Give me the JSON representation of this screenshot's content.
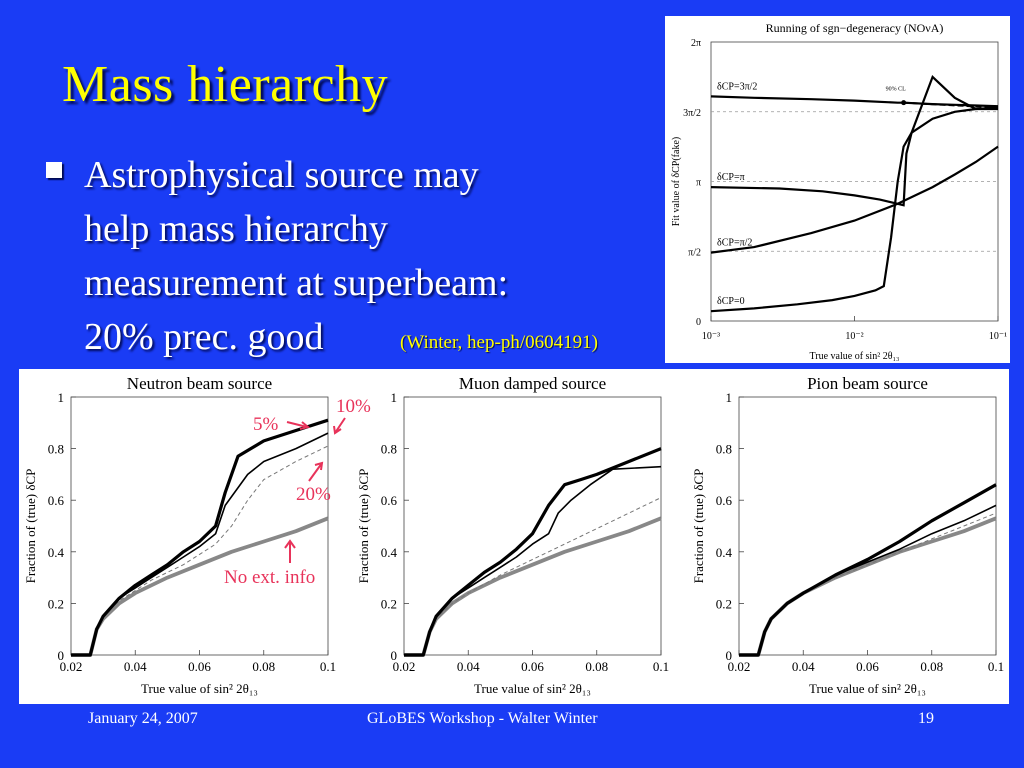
{
  "slide": {
    "title": "Mass hierarchy",
    "bullet_lines": [
      "Astrophysical source may",
      "help mass hierarchy",
      "measurement at superbeam:",
      "20% prec. good"
    ],
    "citation": "(Winter, hep-ph/0604191)",
    "footer_left": "January 24, 2007",
    "footer_center": "GLoBES Workshop - Walter Winter",
    "footer_right": "19",
    "background_color": "#1a3cf5",
    "title_color": "#ffff00",
    "annotation_color": "#e8335a"
  },
  "annotations": {
    "label_5": "5%",
    "label_10": "10%",
    "label_20": "20%",
    "label_noext": "No ext. info"
  },
  "chart_data": [
    {
      "type": "line",
      "title": "Running of sgn−degeneracy (NOνA)",
      "xlabel": "True value of sin² 2θ₁₃",
      "ylabel": "Fit value of δCP(fake)",
      "x_scale": "log",
      "xlim": [
        0.001,
        0.1
      ],
      "ylim": [
        0,
        2
      ],
      "y_unit": "π",
      "x_ticks": [
        {
          "v": 0.001,
          "l": "10⁻³"
        },
        {
          "v": 0.01,
          "l": "10⁻²"
        },
        {
          "v": 0.1,
          "l": "10⁻¹"
        }
      ],
      "y_ticks": [
        {
          "v": 0,
          "l": "0"
        },
        {
          "v": 0.5,
          "l": "π/2"
        },
        {
          "v": 1,
          "l": "π"
        },
        {
          "v": 1.5,
          "l": "3π/2"
        },
        {
          "v": 2,
          "l": "2π"
        }
      ],
      "cl_label": "90% CL",
      "series": [
        {
          "name": "δCP=3π/2",
          "x": [
            0.001,
            0.002,
            0.005,
            0.01,
            0.02,
            0.022,
            0.035,
            0.05,
            0.07,
            0.1
          ],
          "y": [
            1.61,
            1.6,
            1.59,
            1.58,
            1.565,
            1.565,
            1.555,
            1.55,
            1.545,
            1.54
          ]
        },
        {
          "name": "δCP=π",
          "x": [
            0.001,
            0.003,
            0.006,
            0.01,
            0.015,
            0.02,
            0.022,
            0.023,
            0.025,
            0.035,
            0.05,
            0.07,
            0.1
          ],
          "y": [
            0.96,
            0.95,
            0.93,
            0.9,
            0.87,
            0.84,
            0.83,
            1.2,
            1.35,
            1.75,
            1.6,
            1.52,
            1.52
          ]
        },
        {
          "name": "δCP=π/2",
          "x": [
            0.001,
            0.002,
            0.005,
            0.01,
            0.02,
            0.035,
            0.05,
            0.07,
            0.1
          ],
          "y": [
            0.49,
            0.53,
            0.63,
            0.72,
            0.84,
            0.96,
            1.05,
            1.14,
            1.25
          ]
        },
        {
          "name": "δCP=0",
          "x": [
            0.001,
            0.002,
            0.004,
            0.007,
            0.01,
            0.014,
            0.016,
            0.018,
            0.02,
            0.022,
            0.025,
            0.035,
            0.05,
            0.07,
            0.1
          ],
          "y": [
            0.07,
            0.09,
            0.12,
            0.15,
            0.18,
            0.22,
            0.25,
            0.6,
            1.0,
            1.25,
            1.35,
            1.45,
            1.5,
            1.52,
            1.53
          ]
        }
      ],
      "dashed_series": {
        "x": [
          0.022,
          0.1
        ],
        "y": [
          1.565,
          1.53
        ]
      }
    },
    {
      "type": "line",
      "title": "Neutron beam source",
      "xlabel": "True value of sin² 2θ₁₃",
      "ylabel": "Fraction of (true) δCP",
      "xlim": [
        0.02,
        0.1
      ],
      "ylim": [
        0,
        1
      ],
      "x_ticks": [
        0.02,
        0.04,
        0.06,
        0.08,
        0.1
      ],
      "y_ticks": [
        0,
        0.2,
        0.4,
        0.6,
        0.8,
        1
      ],
      "series": [
        {
          "name": "5%",
          "x": [
            0.02,
            0.026,
            0.028,
            0.03,
            0.035,
            0.04,
            0.045,
            0.05,
            0.055,
            0.06,
            0.065,
            0.068,
            0.072,
            0.08,
            0.09,
            0.1
          ],
          "y": [
            0,
            0,
            0.1,
            0.15,
            0.22,
            0.27,
            0.31,
            0.35,
            0.4,
            0.44,
            0.5,
            0.63,
            0.77,
            0.83,
            0.87,
            0.91
          ]
        },
        {
          "name": "10%",
          "x": [
            0.02,
            0.026,
            0.028,
            0.03,
            0.035,
            0.04,
            0.045,
            0.05,
            0.055,
            0.06,
            0.065,
            0.068,
            0.075,
            0.08,
            0.09,
            0.1
          ],
          "y": [
            0,
            0,
            0.1,
            0.15,
            0.22,
            0.26,
            0.3,
            0.34,
            0.38,
            0.42,
            0.47,
            0.58,
            0.7,
            0.75,
            0.8,
            0.86
          ]
        },
        {
          "name": "20%",
          "x": [
            0.02,
            0.026,
            0.028,
            0.03,
            0.035,
            0.04,
            0.045,
            0.05,
            0.055,
            0.06,
            0.065,
            0.07,
            0.075,
            0.08,
            0.09,
            0.1
          ],
          "y": [
            0,
            0,
            0.1,
            0.15,
            0.21,
            0.25,
            0.29,
            0.32,
            0.35,
            0.39,
            0.43,
            0.5,
            0.6,
            0.68,
            0.75,
            0.81
          ]
        },
        {
          "name": "No ext. info",
          "x": [
            0.02,
            0.026,
            0.028,
            0.03,
            0.035,
            0.04,
            0.05,
            0.06,
            0.07,
            0.08,
            0.09,
            0.1
          ],
          "y": [
            0,
            0,
            0.1,
            0.14,
            0.2,
            0.24,
            0.3,
            0.35,
            0.4,
            0.44,
            0.48,
            0.53
          ]
        }
      ]
    },
    {
      "type": "line",
      "title": "Muon damped source",
      "xlabel": "True value of sin² 2θ₁₃",
      "ylabel": "Fraction of (true) δCP",
      "xlim": [
        0.02,
        0.1
      ],
      "ylim": [
        0,
        1
      ],
      "x_ticks": [
        0.02,
        0.04,
        0.06,
        0.08,
        0.1
      ],
      "y_ticks": [
        0,
        0.2,
        0.4,
        0.6,
        0.8,
        1
      ],
      "series": [
        {
          "name": "5%",
          "x": [
            0.02,
            0.026,
            0.028,
            0.03,
            0.035,
            0.04,
            0.045,
            0.05,
            0.055,
            0.06,
            0.065,
            0.07,
            0.075,
            0.08,
            0.09,
            0.1
          ],
          "y": [
            0,
            0,
            0.09,
            0.15,
            0.22,
            0.27,
            0.32,
            0.36,
            0.41,
            0.47,
            0.58,
            0.66,
            0.68,
            0.7,
            0.75,
            0.8
          ]
        },
        {
          "name": "10%",
          "x": [
            0.02,
            0.026,
            0.028,
            0.03,
            0.035,
            0.04,
            0.045,
            0.05,
            0.055,
            0.06,
            0.065,
            0.068,
            0.072,
            0.078,
            0.085,
            0.1
          ],
          "y": [
            0,
            0,
            0.09,
            0.15,
            0.22,
            0.26,
            0.3,
            0.34,
            0.38,
            0.43,
            0.47,
            0.55,
            0.6,
            0.66,
            0.72,
            0.73
          ]
        },
        {
          "name": "20%",
          "x": [
            0.02,
            0.026,
            0.028,
            0.03,
            0.035,
            0.04,
            0.05,
            0.06,
            0.07,
            0.08,
            0.09,
            0.1
          ],
          "y": [
            0,
            0,
            0.09,
            0.14,
            0.2,
            0.24,
            0.31,
            0.37,
            0.43,
            0.49,
            0.55,
            0.61
          ]
        },
        {
          "name": "No ext. info",
          "x": [
            0.02,
            0.026,
            0.028,
            0.03,
            0.035,
            0.04,
            0.05,
            0.06,
            0.07,
            0.08,
            0.09,
            0.1
          ],
          "y": [
            0,
            0,
            0.09,
            0.14,
            0.2,
            0.24,
            0.3,
            0.35,
            0.4,
            0.44,
            0.48,
            0.53
          ]
        }
      ]
    },
    {
      "type": "line",
      "title": "Pion beam source",
      "xlabel": "True value of sin² 2θ₁₃",
      "ylabel": "Fraction of (true) δCP",
      "xlim": [
        0.02,
        0.1
      ],
      "ylim": [
        0,
        1
      ],
      "x_ticks": [
        0.02,
        0.04,
        0.06,
        0.08,
        0.1
      ],
      "y_ticks": [
        0,
        0.2,
        0.4,
        0.6,
        0.8,
        1
      ],
      "series": [
        {
          "name": "5%",
          "x": [
            0.02,
            0.026,
            0.028,
            0.03,
            0.035,
            0.04,
            0.05,
            0.06,
            0.07,
            0.08,
            0.09,
            0.1
          ],
          "y": [
            0,
            0,
            0.09,
            0.14,
            0.2,
            0.24,
            0.31,
            0.37,
            0.44,
            0.52,
            0.59,
            0.66
          ]
        },
        {
          "name": "10%",
          "x": [
            0.02,
            0.026,
            0.028,
            0.03,
            0.035,
            0.04,
            0.05,
            0.06,
            0.07,
            0.08,
            0.09,
            0.1
          ],
          "y": [
            0,
            0,
            0.09,
            0.14,
            0.2,
            0.24,
            0.31,
            0.36,
            0.41,
            0.47,
            0.52,
            0.58
          ]
        },
        {
          "name": "20%",
          "x": [
            0.02,
            0.026,
            0.028,
            0.03,
            0.035,
            0.04,
            0.05,
            0.06,
            0.07,
            0.08,
            0.09,
            0.1
          ],
          "y": [
            0,
            0,
            0.09,
            0.14,
            0.2,
            0.24,
            0.3,
            0.35,
            0.4,
            0.45,
            0.5,
            0.55
          ]
        },
        {
          "name": "No ext. info",
          "x": [
            0.02,
            0.026,
            0.028,
            0.03,
            0.035,
            0.04,
            0.05,
            0.06,
            0.07,
            0.08,
            0.09,
            0.1
          ],
          "y": [
            0,
            0,
            0.09,
            0.14,
            0.2,
            0.24,
            0.3,
            0.35,
            0.4,
            0.44,
            0.48,
            0.53
          ]
        }
      ]
    }
  ]
}
